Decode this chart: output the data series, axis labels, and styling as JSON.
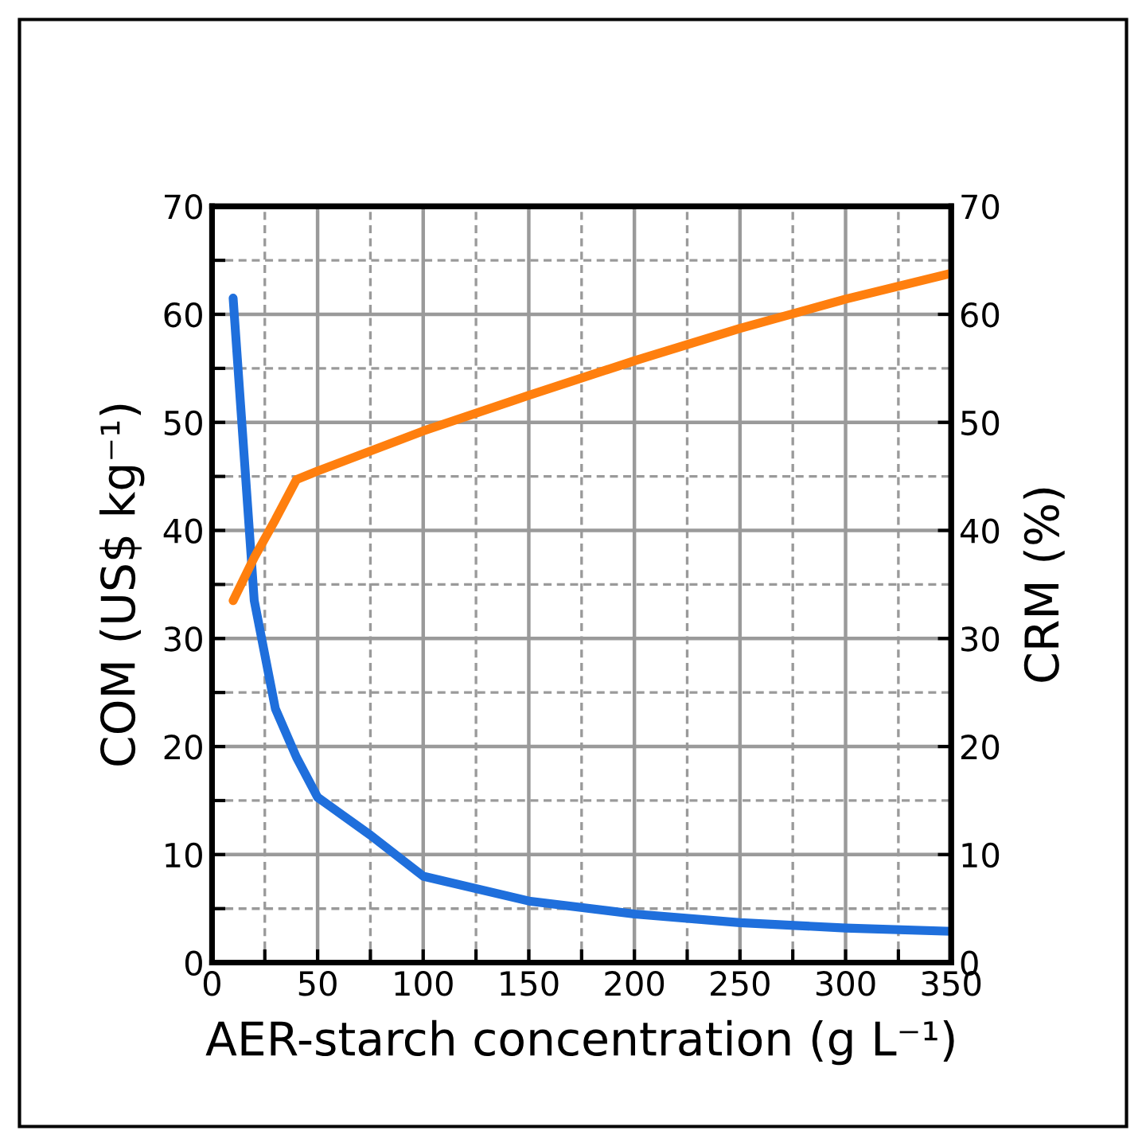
{
  "chart_data": {
    "type": "line",
    "xlabel": "AER-starch concentration (g L⁻¹)",
    "ylabel": "COM (US$ kg⁻¹)",
    "y2label": "CRM (%)",
    "series": [
      {
        "color": "#1f6fdc",
        "x": [
          10,
          20,
          30,
          40,
          50,
          75,
          100,
          150,
          200,
          250,
          300,
          350
        ],
        "values": [
          61.5,
          33.5,
          23.5,
          19,
          15.3,
          11.8,
          8,
          5.7,
          4.5,
          3.7,
          3.2,
          2.9
        ]
      },
      {
        "color": "#ff7f0e",
        "axis": "y2",
        "x": [
          10,
          20,
          30,
          40,
          50,
          100,
          150,
          200,
          250,
          300,
          350
        ],
        "values": [
          33.5,
          37.5,
          41,
          44.7,
          45.5,
          49.2,
          52.5,
          55.7,
          58.7,
          61.4,
          63.8
        ]
      }
    ],
    "xlim": [
      0,
      350
    ],
    "xticks": [
      0,
      {
        "value": 25,
        "label": null
      },
      50,
      {
        "value": 75,
        "label": null
      },
      100,
      {
        "value": 125,
        "label": null
      },
      150,
      {
        "value": 175,
        "label": null
      },
      200,
      {
        "value": 225,
        "label": null
      },
      250,
      {
        "value": 275,
        "label": null
      },
      300,
      {
        "value": 325,
        "label": null
      },
      350
    ],
    "ylim": [
      0,
      70
    ],
    "yticks": [
      0,
      {
        "value": 5,
        "label": null
      },
      10,
      {
        "value": 15,
        "label": null
      },
      20,
      {
        "value": 25,
        "label": null
      },
      30,
      {
        "value": 35,
        "label": null
      },
      40,
      {
        "value": 45,
        "label": null
      },
      50,
      {
        "value": 55,
        "label": null
      },
      60,
      {
        "value": 65,
        "label": null
      },
      70
    ],
    "y2lim": [
      0,
      70
    ],
    "y2ticks": [
      0,
      10,
      20,
      30,
      40,
      50,
      60,
      70
    ],
    "grid": true,
    "marker": "none",
    "line_style": "solid"
  }
}
